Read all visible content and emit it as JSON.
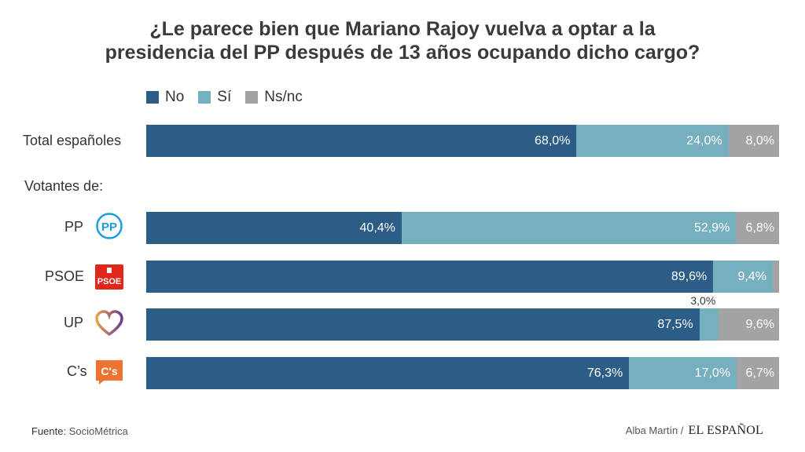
{
  "chart_data": {
    "type": "bar",
    "orientation": "horizontal",
    "stacked": true,
    "title_line1": "¿Le parece bien que Mariano Rajoy vuelva a optar a la",
    "title_line2": "presidencia del PP después de 13 años ocupando dicho cargo?",
    "group_label": "Votantes de:",
    "legend": [
      {
        "name": "No",
        "color": "#2b5d87"
      },
      {
        "name": "Sí",
        "color": "#76afbd"
      },
      {
        "name": "Ns/nc",
        "color": "#a3a3a3"
      }
    ],
    "categories": [
      "Total españoles",
      "PP",
      "PSOE",
      "UP",
      "C’s"
    ],
    "series": [
      {
        "name": "No",
        "values": [
          68.0,
          40.4,
          89.6,
          87.5,
          76.3
        ]
      },
      {
        "name": "Sí",
        "values": [
          24.0,
          52.9,
          9.4,
          3.0,
          17.0
        ]
      },
      {
        "name": "Ns/nc",
        "values": [
          8.0,
          6.8,
          1.0,
          9.6,
          6.7
        ]
      }
    ],
    "value_labels": [
      [
        "68,0%",
        "24,0%",
        "8,0%"
      ],
      [
        "40,4%",
        "52,9%",
        "6,8%"
      ],
      [
        "89,6%",
        "9,4%",
        ""
      ],
      [
        "87,5%",
        "3,0%",
        "9,6%"
      ],
      [
        "76,3%",
        "17,0%",
        "6,7%"
      ]
    ],
    "xlim": [
      0,
      100
    ]
  },
  "logos": {
    "pp": "PP",
    "psoe": "PSOE",
    "cs": "C's",
    "pp_color": "#1b9be0",
    "psoe_color": "#e1261c",
    "cs_color": "#ee7331",
    "up_color_left": "#e6a14b",
    "up_color_right": "#6b3b8f"
  },
  "footer": {
    "source_label": "Fuente:",
    "source_name": "SocioMétrica",
    "author": "Alba Martín /",
    "brand": "EL ESPAÑOL"
  }
}
